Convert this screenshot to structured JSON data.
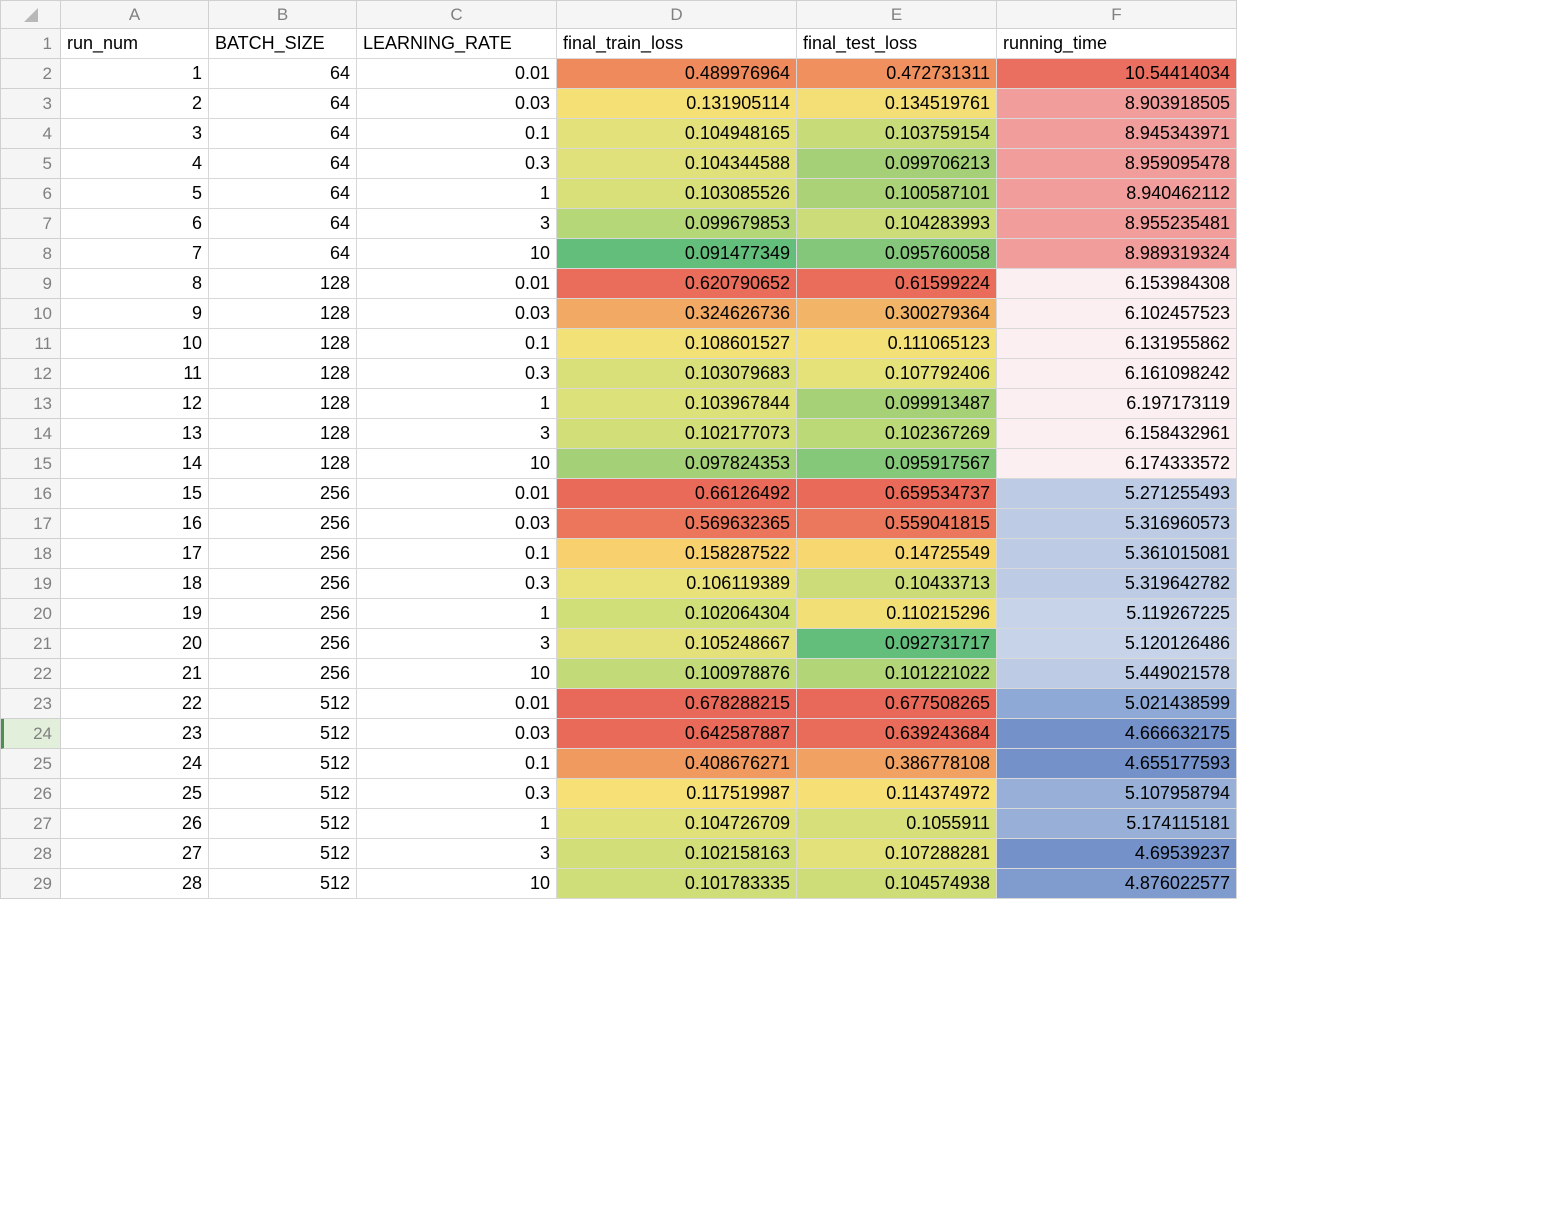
{
  "grid": {
    "column_letters": [
      "A",
      "B",
      "C",
      "D",
      "E",
      "F"
    ],
    "row_count": 29,
    "selected_row_header": 24,
    "header_bg": "#f5f5f5",
    "header_text_color": "#808080",
    "gridline_color": "#d8d8d8",
    "font_family": "-apple-system",
    "font_size_pt": 13
  },
  "headers": {
    "A": "run_num",
    "B": "BATCH_SIZE",
    "C": "LEARNING_RATE",
    "D": "final_train_loss",
    "E": "final_test_loss",
    "F": "running_time"
  },
  "rows": [
    {
      "run_num": 1,
      "batch": 64,
      "lr": "0.01",
      "train": "0.489976964",
      "test": "0.472731311",
      "time": "10.54414034",
      "c_train": "#ee8a5b",
      "c_test": "#f0905e",
      "c_time": "#eb6f60"
    },
    {
      "run_num": 2,
      "batch": 64,
      "lr": "0.03",
      "train": "0.131905114",
      "test": "0.134519761",
      "time": "8.903918505",
      "c_train": "#f5e075",
      "c_test": "#f3df75",
      "c_time": "#f19d9c"
    },
    {
      "run_num": 3,
      "batch": 64,
      "lr": "0.1",
      "train": "0.104948165",
      "test": "0.103759154",
      "time": "8.945343971",
      "c_train": "#e2e17a",
      "c_test": "#c7db78",
      "c_time": "#f19d9c"
    },
    {
      "run_num": 4,
      "batch": 64,
      "lr": "0.3",
      "train": "0.104344588",
      "test": "0.099706213",
      "time": "8.959095478",
      "c_train": "#e0e17a",
      "c_test": "#a5d077",
      "c_time": "#f19d9c"
    },
    {
      "run_num": 5,
      "batch": 64,
      "lr": "1",
      "train": "0.103085526",
      "test": "0.100587101",
      "time": "8.940462112",
      "c_train": "#d9e079",
      "c_test": "#abd277",
      "c_time": "#f19d9c"
    },
    {
      "run_num": 6,
      "batch": 64,
      "lr": "3",
      "train": "0.099679853",
      "test": "0.104283993",
      "time": "8.955235481",
      "c_train": "#b6d778",
      "c_test": "#cbdc78",
      "c_time": "#f19d9c"
    },
    {
      "run_num": 7,
      "batch": 64,
      "lr": "10",
      "train": "0.091477349",
      "test": "0.095760058",
      "time": "8.989319324",
      "c_train": "#63be7b",
      "c_test": "#84c77a",
      "c_time": "#f19d9c"
    },
    {
      "run_num": 8,
      "batch": 128,
      "lr": "0.01",
      "train": "0.620790652",
      "test": "0.61599224",
      "time": "6.153984308",
      "c_train": "#ea6c5a",
      "c_test": "#ea6c5a",
      "c_time": "#fbeff1"
    },
    {
      "run_num": 9,
      "batch": 128,
      "lr": "0.03",
      "train": "0.324626736",
      "test": "0.300279364",
      "time": "6.102457523",
      "c_train": "#f1a963",
      "c_test": "#f2b467",
      "c_time": "#fbeff1"
    },
    {
      "run_num": 10,
      "batch": 128,
      "lr": "0.1",
      "train": "0.108601527",
      "test": "0.111065123",
      "time": "6.131955862",
      "c_train": "#f1e176",
      "c_test": "#f3e076",
      "c_time": "#fbeff1"
    },
    {
      "run_num": 11,
      "batch": 128,
      "lr": "0.3",
      "train": "0.103079683",
      "test": "0.107792406",
      "time": "6.161098242",
      "c_train": "#d9e079",
      "c_test": "#e6e27a",
      "c_time": "#fbeff1"
    },
    {
      "run_num": 12,
      "batch": 128,
      "lr": "1",
      "train": "0.103967844",
      "test": "0.099913487",
      "time": "6.197173119",
      "c_train": "#dde17a",
      "c_test": "#a7d177",
      "c_time": "#fbeff1"
    },
    {
      "run_num": 13,
      "batch": 128,
      "lr": "3",
      "train": "0.102177073",
      "test": "0.102367269",
      "time": "6.158432961",
      "c_train": "#d2df79",
      "c_test": "#bcd978",
      "c_time": "#fbeff1"
    },
    {
      "run_num": 14,
      "batch": 128,
      "lr": "10",
      "train": "0.097824353",
      "test": "0.095917567",
      "time": "6.174333572",
      "c_train": "#a4d077",
      "c_test": "#86c87a",
      "c_time": "#fbeff1"
    },
    {
      "run_num": 15,
      "batch": 256,
      "lr": "0.01",
      "train": "0.66126492",
      "test": "0.659534737",
      "time": "5.271255493",
      "c_train": "#e96a59",
      "c_test": "#e96a59",
      "c_time": "#bdcce4"
    },
    {
      "run_num": 16,
      "batch": 256,
      "lr": "0.03",
      "train": "0.569632365",
      "test": "0.559041815",
      "time": "5.316960573",
      "c_train": "#eb765c",
      "c_test": "#eb785c",
      "c_time": "#bdcce4"
    },
    {
      "run_num": 17,
      "batch": 256,
      "lr": "0.1",
      "train": "0.158287522",
      "test": "0.14725549",
      "time": "5.361015081",
      "c_train": "#f8d06e",
      "c_test": "#f6d770",
      "c_time": "#bdcce4"
    },
    {
      "run_num": 18,
      "batch": 256,
      "lr": "0.3",
      "train": "0.106119389",
      "test": "0.10433713",
      "time": "5.319642782",
      "c_train": "#e9e27a",
      "c_test": "#ccdc78",
      "c_time": "#bdcce4"
    },
    {
      "run_num": 19,
      "batch": 256,
      "lr": "1",
      "train": "0.102064304",
      "test": "0.110215296",
      "time": "5.119267225",
      "c_train": "#d1df79",
      "c_test": "#f2e076",
      "c_time": "#c7d3e8"
    },
    {
      "run_num": 20,
      "batch": 256,
      "lr": "3",
      "train": "0.105248667",
      "test": "0.092731717",
      "time": "5.120126486",
      "c_train": "#e4e17a",
      "c_test": "#63be7b",
      "c_time": "#c7d3e8"
    },
    {
      "run_num": 21,
      "batch": 256,
      "lr": "10",
      "train": "0.100978876",
      "test": "0.101221022",
      "time": "5.449021578",
      "c_train": "#c3da78",
      "c_test": "#b2d578",
      "c_time": "#bdcce4"
    },
    {
      "run_num": 22,
      "batch": 512,
      "lr": "0.01",
      "train": "0.678288215",
      "test": "0.677508265",
      "time": "5.021438599",
      "c_train": "#e86859",
      "c_test": "#e86859",
      "c_time": "#8ea9d5"
    },
    {
      "run_num": 23,
      "batch": 512,
      "lr": "0.03",
      "train": "0.642587887",
      "test": "0.639243684",
      "time": "4.666632175",
      "c_train": "#e96a59",
      "c_test": "#e96b59",
      "c_time": "#7492c9"
    },
    {
      "run_num": 24,
      "batch": 512,
      "lr": "0.1",
      "train": "0.408676271",
      "test": "0.386778108",
      "time": "4.655177593",
      "c_train": "#f09a60",
      "c_test": "#f1a162",
      "c_time": "#7492c9"
    },
    {
      "run_num": 25,
      "batch": 512,
      "lr": "0.3",
      "train": "0.117519987",
      "test": "0.114374972",
      "time": "5.107958794",
      "c_train": "#f7e076",
      "c_test": "#f6e076",
      "c_time": "#98b0d8"
    },
    {
      "run_num": 26,
      "batch": 512,
      "lr": "1",
      "train": "0.104726709",
      "test": "0.1055911",
      "time": "5.174115181",
      "c_train": "#e1e17a",
      "c_test": "#d6df79",
      "c_time": "#98b0d8"
    },
    {
      "run_num": 27,
      "batch": 512,
      "lr": "3",
      "train": "0.102158163",
      "test": "0.107288281",
      "time": "4.69539237",
      "c_train": "#d2df79",
      "c_test": "#e2e17a",
      "c_time": "#7492c9"
    },
    {
      "run_num": 28,
      "batch": 512,
      "lr": "10",
      "train": "0.101783335",
      "test": "0.104574938",
      "time": "4.876022577",
      "c_train": "#cfde79",
      "c_test": "#cedd78",
      "c_time": "#809bce"
    }
  ]
}
